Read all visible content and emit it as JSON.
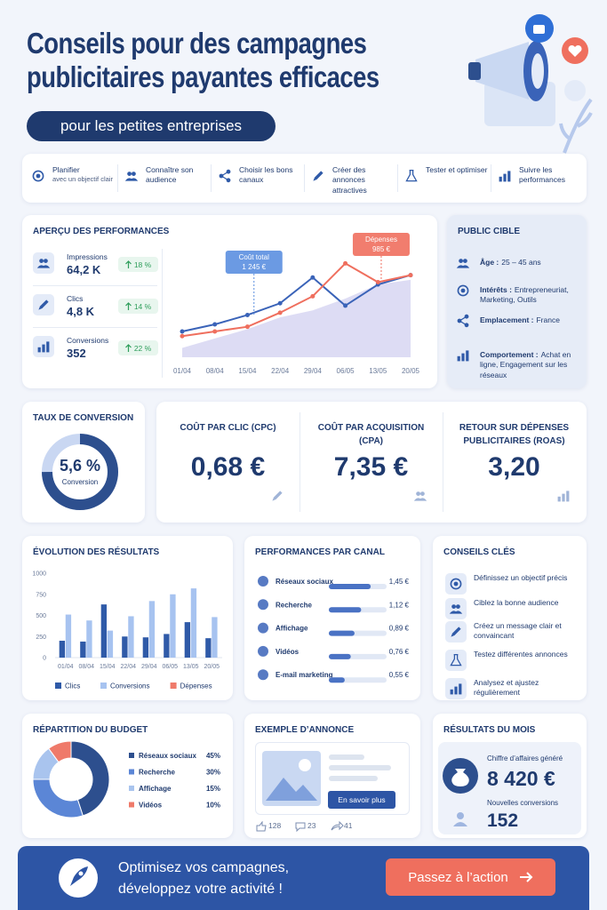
{
  "header": {
    "title": "Conseils pour des campagnes publicitaires payantes efficaces",
    "subtitle": "pour les petites entreprises"
  },
  "steps": [
    {
      "title": "Planifier",
      "text": "avec un objectif clair"
    },
    {
      "title": "Connaître son audience"
    },
    {
      "title": "Choisir les bons canaux"
    },
    {
      "title": "Créer des annonces attractives"
    },
    {
      "title": "Tester et optimiser"
    },
    {
      "title": "Suivre les performances"
    }
  ],
  "performance": {
    "title": "APERÇU DES PERFORMANCES",
    "kpis": [
      {
        "label": "Impressions",
        "value": "64,2 K",
        "change": "18 %"
      },
      {
        "label": "Clics",
        "value": "4,8 K",
        "change": "14 %"
      },
      {
        "label": "Conversions",
        "value": "352",
        "change": "22 %"
      }
    ]
  },
  "audience": {
    "title": "PUBLIC CIBLE",
    "items": [
      {
        "label": "Âge :",
        "text": "25 – 45 ans"
      },
      {
        "label": "Intérêts :",
        "text": "Entrepreneuriat, Marketing, Outils"
      },
      {
        "label": "Emplacement :",
        "text": "France"
      },
      {
        "label": "Comportement :",
        "text": "Achat en ligne, Engagement sur les réseaux"
      }
    ]
  },
  "conversion": {
    "title": "TAUX DE CONVERSION",
    "value": "5,6 %",
    "label": "Conversion"
  },
  "metrics": [
    {
      "title": "COÛT PAR CLIC (CPC)",
      "value": "0,68 €"
    },
    {
      "title": "COÛT PAR ACQUISITION (CPA)",
      "value": "7,35 €"
    },
    {
      "title": "RETOUR SUR DÉPENSES PUBLICITAIRES (ROAS)",
      "value": "3,20"
    }
  ],
  "tips": {
    "title": "CONSEILS CLÉS",
    "items": [
      "Définissez un objectif précis",
      "Ciblez la bonne audience",
      "Créez un message clair et convaincant",
      "Testez différentes annonces",
      "Analysez et ajustez régulièrement"
    ]
  },
  "ad": {
    "title": "EXEMPLE D’ANNONCE",
    "button": "En savoir plus",
    "likes": "128",
    "comments": "23",
    "shares": "41"
  },
  "results": {
    "title": "RÉSULTATS DU MOIS",
    "revenue_label": "Chiffre d’affaires généré",
    "revenue": "8 420 €",
    "conversions_label": "Nouvelles conversions",
    "conversions": "152"
  },
  "footer": {
    "text": "Optimisez vos campagnes, développez votre activité !",
    "button": "Passez à l’action"
  },
  "chart_data": [
    {
      "type": "line",
      "categories": [
        "01/04",
        "08/04",
        "15/04",
        "22/04",
        "29/04",
        "06/05",
        "13/05",
        "20/05"
      ],
      "ylim": [
        0,
        100
      ],
      "series": [
        {
          "color": "#cfcdef",
          "kind": "area",
          "values": [
            8,
            16,
            24,
            34,
            40,
            50,
            62,
            66
          ]
        },
        {
          "color": "#3a63b8",
          "values": [
            22,
            28,
            36,
            46,
            68,
            44,
            62,
            70
          ]
        },
        {
          "color": "#ef6f5e",
          "values": [
            18,
            22,
            26,
            38,
            52,
            80,
            64,
            70
          ]
        }
      ],
      "annotations": [
        {
          "title": "Coût total",
          "label": "1 245 €",
          "color": "#5b8fe0"
        },
        {
          "title": "Dépenses",
          "label": "985 €",
          "color": "#ef6f5e"
        }
      ]
    },
    {
      "type": "bar",
      "title": "ÉVOLUTION DES RÉSULTATS",
      "categories": [
        "01/04",
        "08/04",
        "15/04",
        "22/04",
        "29/04",
        "06/05",
        "13/05",
        "20/05"
      ],
      "ylim": [
        0,
        1000
      ],
      "yticks": [
        0,
        250,
        500,
        750,
        1000
      ],
      "grid": false,
      "series": [
        {
          "name": "Clics",
          "color": "#2f5aa8",
          "values": [
            200,
            190,
            630,
            250,
            240,
            280,
            420,
            230
          ]
        },
        {
          "name": "Conversions",
          "color": "#a7c3f0",
          "values": [
            510,
            440,
            320,
            490,
            670,
            750,
            820,
            480
          ]
        },
        {
          "name": "Dépenses",
          "color": "#ef7a6a",
          "values": [
            null,
            null,
            null,
            null,
            null,
            null,
            null,
            null
          ]
        }
      ]
    },
    {
      "type": "hbar",
      "title": "PERFORMANCES PAR CANAL",
      "categories": [
        "Réseaux sociaux",
        "Recherche",
        "Affichage",
        "Vidéos",
        "E-mail marketing"
      ],
      "values": [
        1.45,
        1.12,
        0.89,
        0.76,
        0.55
      ],
      "value_labels": [
        "1,45 €",
        "1,12 €",
        "0,89 €",
        "0,76 €",
        "0,55 €"
      ],
      "xlim": [
        0,
        2
      ],
      "color": "#4a72c4"
    },
    {
      "type": "donut",
      "title": "RÉPARTITION DU BUDGET",
      "categories": [
        "Réseaux sociaux",
        "Recherche",
        "Affichage",
        "Vidéos"
      ],
      "values": [
        45,
        30,
        15,
        10
      ],
      "value_labels": [
        "45%",
        "30%",
        "15%",
        "10%"
      ],
      "colors": [
        "#2d4f8e",
        "#5b86d6",
        "#a9c4ee",
        "#ef7a6a"
      ]
    }
  ]
}
